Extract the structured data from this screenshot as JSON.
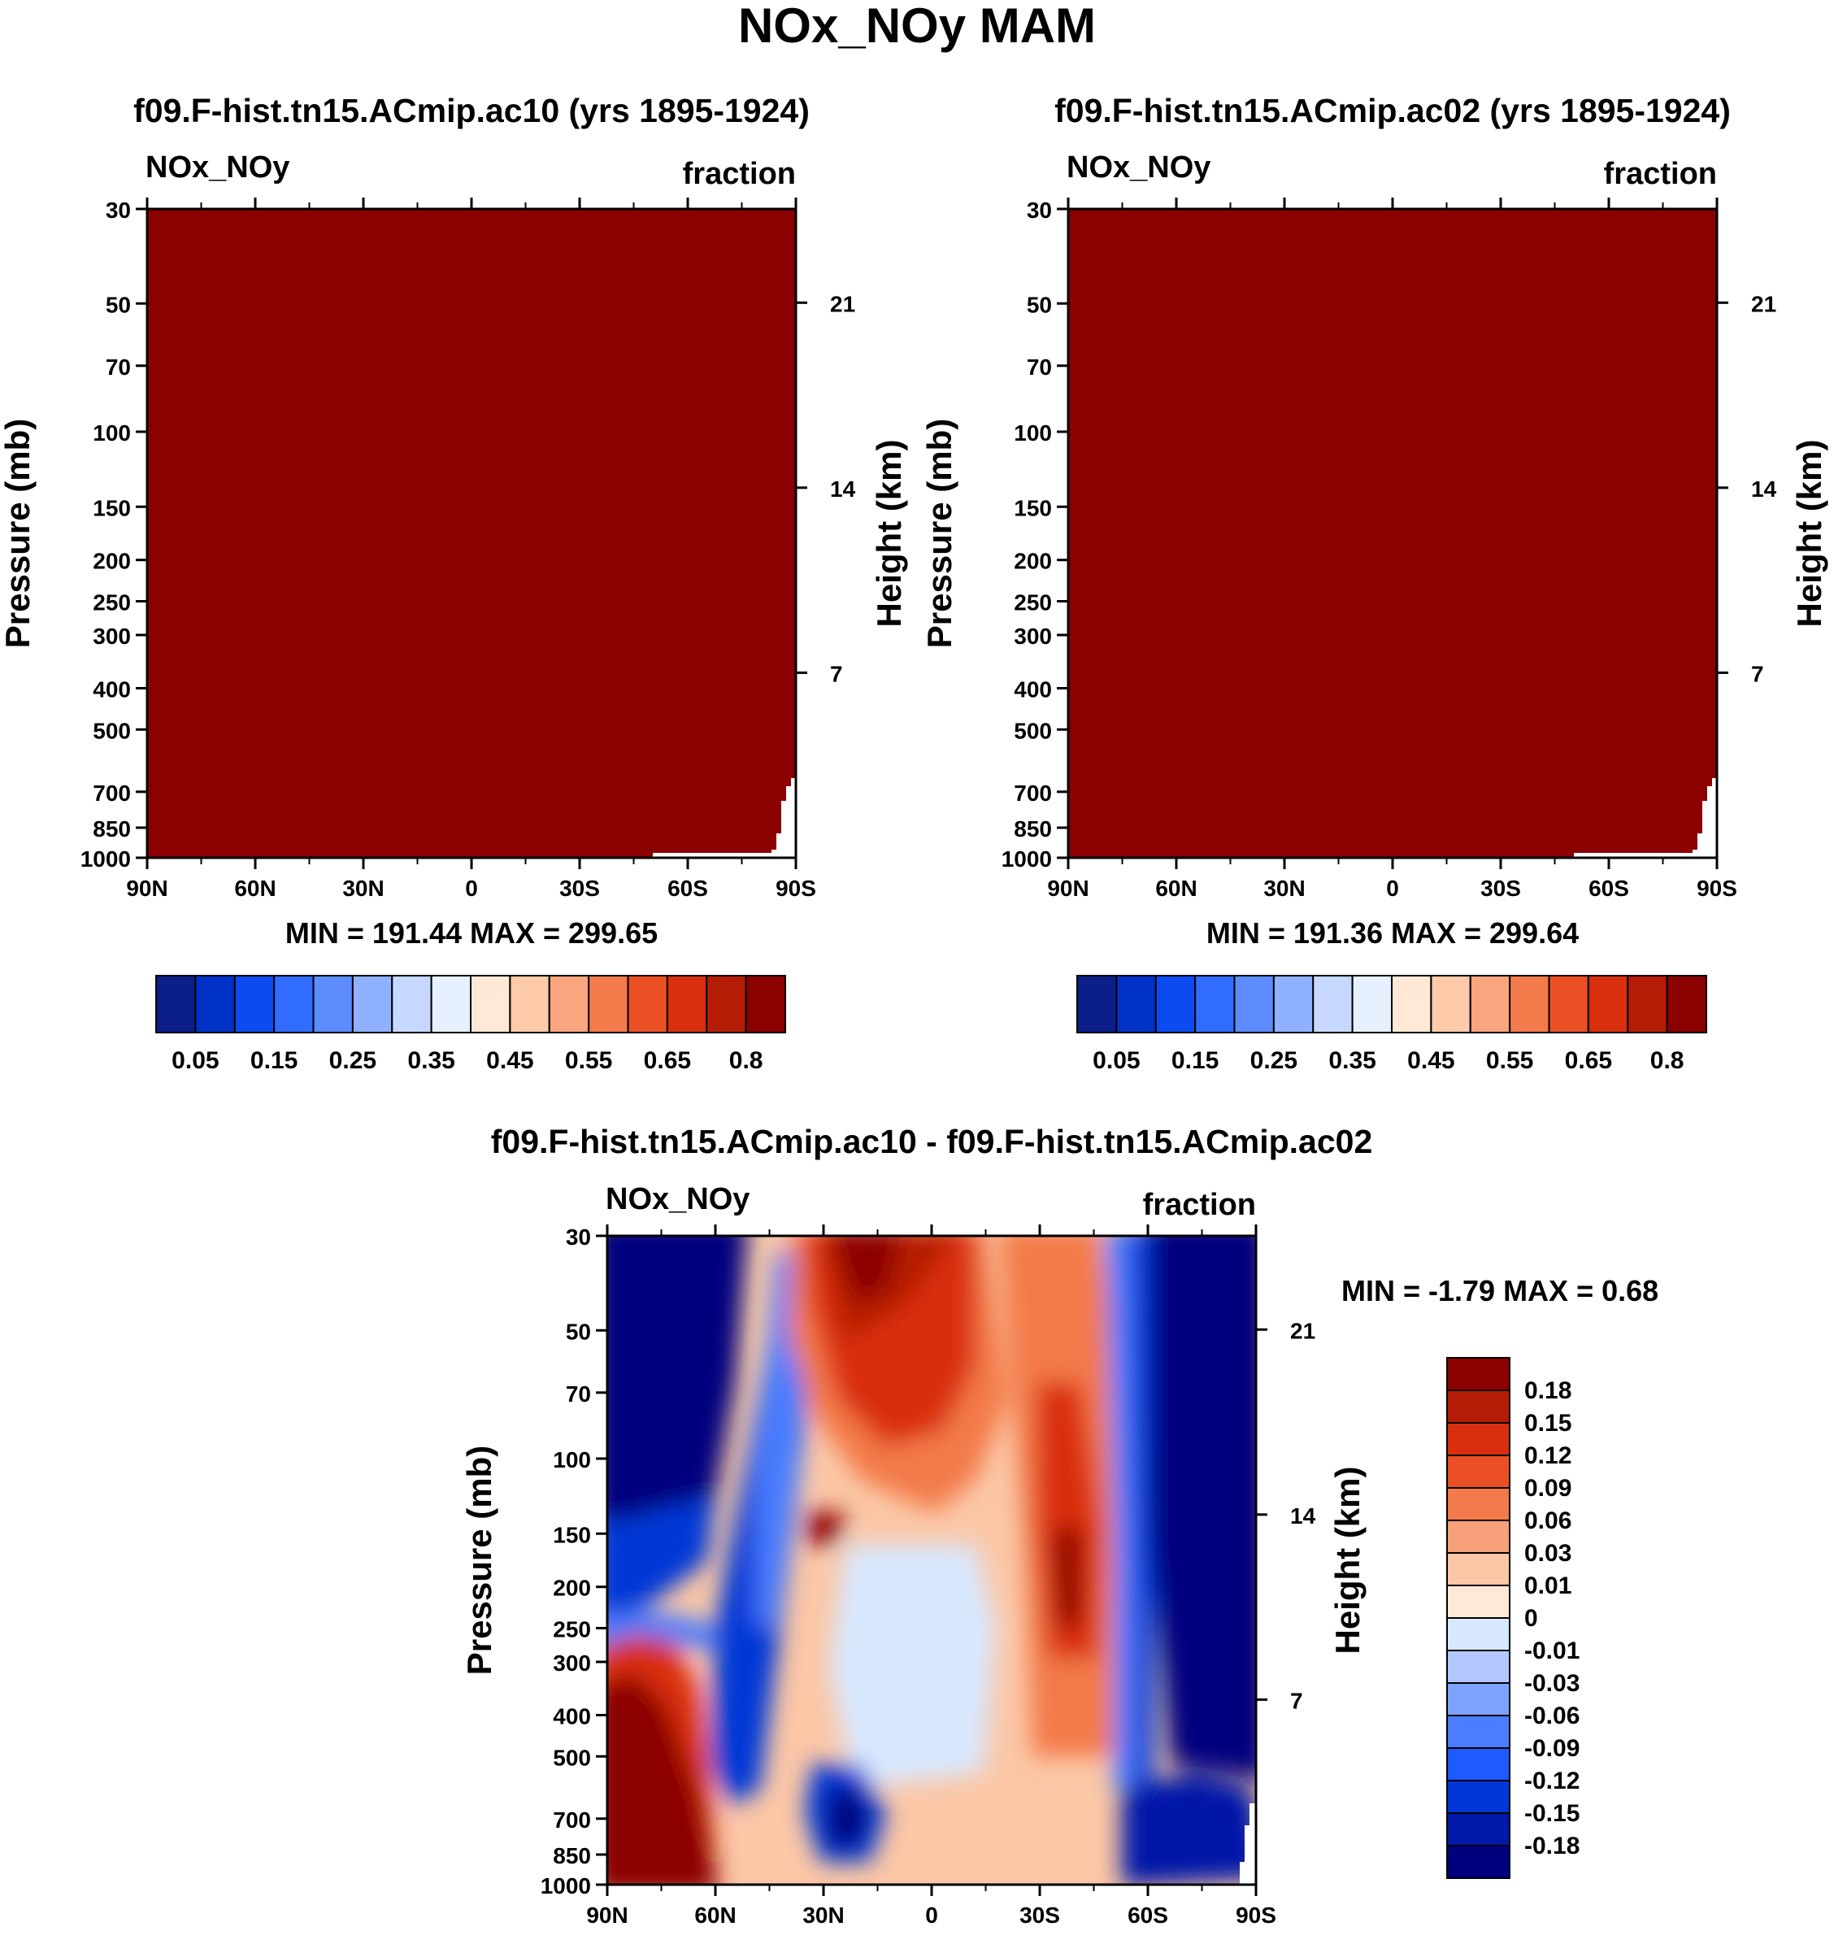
{
  "figure_title": "NOx_NOy MAM",
  "colors": {
    "panel_fill": "#8b0000",
    "diff_scale": [
      "#00007f",
      "#0019a8",
      "#0037d6",
      "#1e5aff",
      "#4a7dff",
      "#7ea3ff",
      "#b3c8ff",
      "#d8e8ff",
      "#ffe9d6",
      "#fbc7a6",
      "#f8a07a",
      "#f37a4a",
      "#ea5024",
      "#d92f0e",
      "#b51c05",
      "#8b0000"
    ],
    "ratio_scale": [
      "#0b1e8a",
      "#0032c8",
      "#0b4bf0",
      "#2f6cff",
      "#5c8cff",
      "#8fb1ff",
      "#c6d8ff",
      "#e6f0ff",
      "#ffe9d6",
      "#fdcbaa",
      "#f9a67e",
      "#f37a4a",
      "#ea5024",
      "#d92f0e",
      "#b51c05",
      "#8b0000"
    ]
  },
  "panels": [
    {
      "title": "f09.F-hist.tn15.ACmip.ac10 (yrs 1895-1924)",
      "left_label": "NOx_NOy",
      "right_label": "fraction",
      "minmax": "MIN = 191.44  MAX = 299.65",
      "ylabel": "Pressure (mb)",
      "ylabel2": "Height (km)"
    },
    {
      "title": "f09.F-hist.tn15.ACmip.ac02 (yrs 1895-1924)",
      "left_label": "NOx_NOy",
      "right_label": "fraction",
      "minmax": "MIN = 191.36  MAX = 299.64",
      "ylabel": "Pressure (mb)",
      "ylabel2": "Height (km)"
    },
    {
      "title": "f09.F-hist.tn15.ACmip.ac10 - f09.F-hist.tn15.ACmip.ac02",
      "left_label": "NOx_NOy",
      "right_label": "fraction",
      "minmax": "MIN =  -1.79  MAX =   0.68",
      "ylabel": "Pressure (mb)",
      "ylabel2": "Height (km)"
    }
  ],
  "chart_data": [
    {
      "type": "heatmap",
      "title": "f09.F-hist.tn15.ACmip.ac10 (yrs 1895-1924)",
      "variable": "NOx_NOy",
      "units": "fraction",
      "xlabel": "",
      "ylabel": "Pressure (mb)",
      "ylabel_right": "Height (km)",
      "x_ticks": [
        "90N",
        "60N",
        "30N",
        "0",
        "30S",
        "60S",
        "90S"
      ],
      "x_values": [
        90,
        60,
        30,
        0,
        -30,
        -60,
        -90
      ],
      "y_ticks": [
        30,
        50,
        70,
        100,
        150,
        200,
        250,
        300,
        400,
        500,
        700,
        850,
        1000
      ],
      "y_range": [
        30,
        1000
      ],
      "height_ticks": [
        21,
        14,
        7
      ],
      "min": 191.44,
      "max": 299.65,
      "field": "uniform maximum class (>0.8) everywhere except missing below ~700 mb poleward of ~80S"
    },
    {
      "type": "heatmap",
      "title": "f09.F-hist.tn15.ACmip.ac02 (yrs 1895-1924)",
      "variable": "NOx_NOy",
      "units": "fraction",
      "xlabel": "",
      "ylabel": "Pressure (mb)",
      "ylabel_right": "Height (km)",
      "x_ticks": [
        "90N",
        "60N",
        "30N",
        "0",
        "30S",
        "60S",
        "90S"
      ],
      "x_values": [
        90,
        60,
        30,
        0,
        -30,
        -60,
        -90
      ],
      "y_ticks": [
        30,
        50,
        70,
        100,
        150,
        200,
        250,
        300,
        400,
        500,
        700,
        850,
        1000
      ],
      "y_range": [
        30,
        1000
      ],
      "height_ticks": [
        21,
        14,
        7
      ],
      "min": 191.36,
      "max": 299.64,
      "field": "uniform maximum class (>0.8) everywhere except missing below ~700 mb poleward of ~80S"
    },
    {
      "type": "heatmap",
      "title": "f09.F-hist.tn15.ACmip.ac10 - f09.F-hist.tn15.ACmip.ac02",
      "variable": "NOx_NOy",
      "units": "fraction",
      "xlabel": "",
      "ylabel": "Pressure (mb)",
      "ylabel_right": "Height (km)",
      "x_ticks": [
        "90N",
        "60N",
        "30N",
        "0",
        "30S",
        "60S",
        "90S"
      ],
      "x_values": [
        90,
        60,
        30,
        0,
        -30,
        -60,
        -90
      ],
      "y_ticks": [
        30,
        50,
        70,
        100,
        150,
        200,
        250,
        300,
        400,
        500,
        700,
        850,
        1000
      ],
      "y_range": [
        30,
        1000
      ],
      "height_ticks": [
        21,
        14,
        7
      ],
      "min": -1.79,
      "max": 0.68,
      "contour_levels": [
        -0.18,
        -0.15,
        -0.12,
        -0.09,
        -0.06,
        -0.03,
        -0.01,
        0,
        0.01,
        0.03,
        0.06,
        0.09,
        0.12,
        0.15,
        0.18
      ],
      "features": [
        {
          "lat": 75,
          "p_range": [
            30,
            150
          ],
          "sign": "negative",
          "strength": "below -0.18"
        },
        {
          "lat": 72,
          "p_range": [
            150,
            300
          ],
          "sign": "negative",
          "strength": "-0.06 to -0.15"
        },
        {
          "lat": 75,
          "p_range": [
            300,
            1000
          ],
          "sign": "positive",
          "strength": "above 0.18"
        },
        {
          "lat": 20,
          "p_range": [
            30,
            100
          ],
          "sign": "positive",
          "strength": "0.15 to 0.18+"
        },
        {
          "lat": 32,
          "p_range": [
            100,
            250
          ],
          "sign": "positive",
          "strength": "0.12 to 0.18"
        },
        {
          "lat": 0,
          "p_range": [
            200,
            500
          ],
          "sign": "negative",
          "strength": "-0.01 to -0.03"
        },
        {
          "lat": 25,
          "p_range": [
            600,
            900
          ],
          "sign": "negative",
          "strength": "-0.09 to -0.15"
        },
        {
          "lat": -38,
          "p_range": [
            120,
            400
          ],
          "sign": "positive",
          "strength": "0.15 to 0.18+"
        },
        {
          "lat": -75,
          "p_range": [
            30,
            700
          ],
          "sign": "negative",
          "strength": "below -0.18"
        }
      ]
    }
  ],
  "colorbars": [
    {
      "labels": [
        "0.05",
        "0.15",
        "0.25",
        "0.35",
        "0.45",
        "0.55",
        "0.65",
        "0.8"
      ]
    },
    {
      "labels": [
        "0.05",
        "0.15",
        "0.25",
        "0.35",
        "0.45",
        "0.55",
        "0.65",
        "0.8"
      ]
    },
    {
      "labels": [
        "0.18",
        "0.15",
        "0.12",
        "0.09",
        "0.06",
        "0.03",
        "0.01",
        "0",
        "-0.01",
        "-0.03",
        "-0.06",
        "-0.09",
        "-0.12",
        "-0.15",
        "-0.18"
      ]
    }
  ]
}
